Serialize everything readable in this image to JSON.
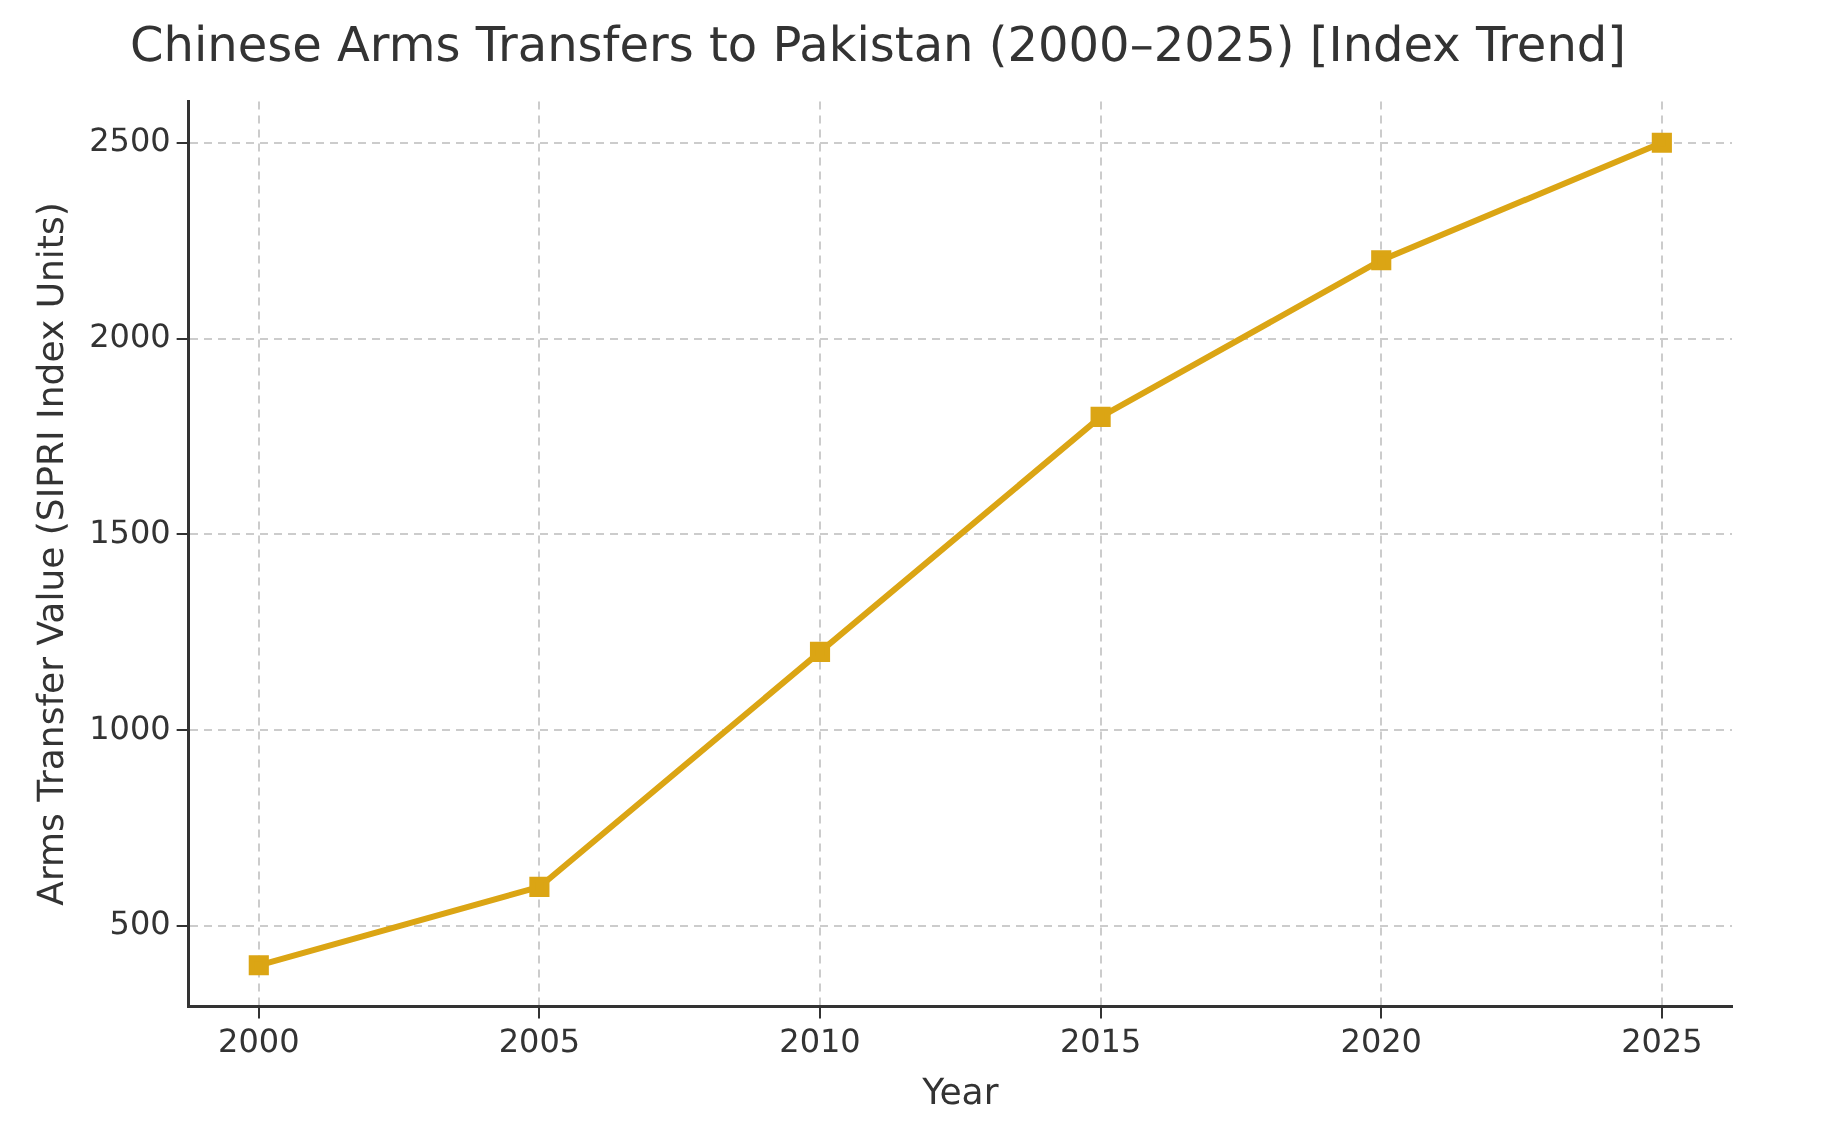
{
  "chart_data": {
    "type": "line",
    "title": "Chinese Arms Transfers to Pakistan (2000–2025) [Index Trend]",
    "xlabel": "Year",
    "ylabel": "Arms Transfer Value (SIPRI Index Units)",
    "x": [
      2000,
      2005,
      2010,
      2015,
      2020,
      2025
    ],
    "series": [
      {
        "color": "#dba514",
        "values": [
          400,
          600,
          1200,
          1800,
          2200,
          2500
        ]
      }
    ],
    "xlim": [
      1998.75,
      2026.25
    ],
    "xticks": [
      2000,
      2005,
      2010,
      2015,
      2020,
      2025
    ],
    "ylim": [
      295,
      2605
    ],
    "yticks": [
      500,
      1000,
      1500,
      2000,
      2500
    ],
    "grid": true,
    "marker": "square",
    "line_style": "solid",
    "legend": false
  }
}
